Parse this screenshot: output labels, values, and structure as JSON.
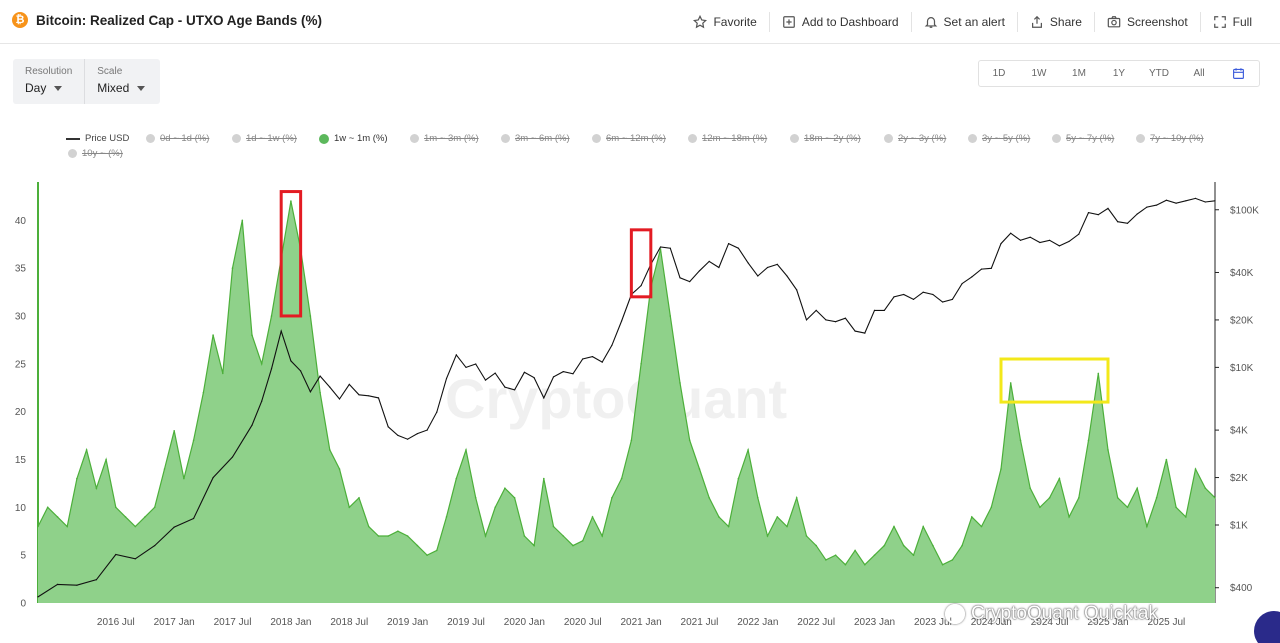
{
  "header": {
    "title": "Bitcoin: Realized Cap - UTXO Age Bands (%)",
    "coin_icon": "bitcoin-icon",
    "tools": [
      {
        "label": "Favorite",
        "icon": "star-icon"
      },
      {
        "label": "Add to Dashboard",
        "icon": "dashboard-add-icon"
      },
      {
        "label": "Set an alert",
        "icon": "bell-icon"
      },
      {
        "label": "Share",
        "icon": "share-icon"
      },
      {
        "label": "Screenshot",
        "icon": "camera-icon"
      },
      {
        "label": "Full",
        "icon": "fullscreen-icon"
      }
    ]
  },
  "controls": {
    "resolution_label": "Resolution",
    "resolution_value": "Day",
    "scale_label": "Scale",
    "scale_value": "Mixed",
    "ranges": [
      "1D",
      "1W",
      "1M",
      "1Y",
      "YTD",
      "All"
    ],
    "calendar_icon": "calendar-icon"
  },
  "legend": {
    "price_label": "Price USD",
    "bands": [
      {
        "label": "0d ~ 1d (%)",
        "active": false
      },
      {
        "label": "1d ~ 1w (%)",
        "active": false
      },
      {
        "label": "1w ~ 1m (%)",
        "active": true
      },
      {
        "label": "1m ~ 3m (%)",
        "active": false
      },
      {
        "label": "3m ~ 6m (%)",
        "active": false
      },
      {
        "label": "6m ~ 12m (%)",
        "active": false
      },
      {
        "label": "12m ~ 18m (%)",
        "active": false
      },
      {
        "label": "18m ~ 2y (%)",
        "active": false
      },
      {
        "label": "2y ~ 3y (%)",
        "active": false
      },
      {
        "label": "3y ~ 5y (%)",
        "active": false
      },
      {
        "label": "5y ~ 7y (%)",
        "active": false
      },
      {
        "label": "7y ~ 10y (%)",
        "active": false
      },
      {
        "label": "10y ~ (%)",
        "active": false
      }
    ]
  },
  "colors": {
    "band_fill": "#8fd18a",
    "band_line": "#4caf3a",
    "price_line": "#111111",
    "highlight_red": "#e31b23",
    "highlight_yellow": "#f3e81a",
    "active_dot": "#5cb85c"
  },
  "watermark": "CryptoQuant",
  "footer_watermark": "CryptoQuant Quicktak",
  "chart_data": {
    "type": "area",
    "x_start": "2015-11",
    "x_end": "2025-12",
    "xlabel_ticks": [
      "2016 Jul",
      "2017 Jan",
      "2017 Jul",
      "2018 Jan",
      "2018 Jul",
      "2019 Jan",
      "2019 Jul",
      "2020 Jan",
      "2020 Jul",
      "2021 Jan",
      "2021 Jul",
      "2022 Jan",
      "2022 Jul",
      "2023 Jan",
      "2023 Jul",
      "2024 Jan",
      "2024 Jul",
      "2025 Jan",
      "2025 Jul"
    ],
    "left_axis": {
      "ticks": [
        0,
        5,
        10,
        15,
        20,
        25,
        30,
        35,
        40
      ],
      "ylim": [
        0,
        44
      ]
    },
    "right_axis": {
      "scale": "log",
      "ticks": [
        "$400",
        "$1K",
        "$2K",
        "$4K",
        "$10K",
        "$20K",
        "$40K",
        "$100K"
      ],
      "tick_values": [
        400,
        1000,
        2000,
        4000,
        10000,
        20000,
        40000,
        100000
      ],
      "ylim": [
        320,
        150000
      ]
    },
    "series": [
      {
        "name": "1w ~ 1m (%)",
        "axis": "left",
        "points": [
          [
            "2015-11",
            8
          ],
          [
            "2015-12",
            10
          ],
          [
            "2016-01",
            9
          ],
          [
            "2016-02",
            8
          ],
          [
            "2016-03",
            13
          ],
          [
            "2016-04",
            16
          ],
          [
            "2016-05",
            12
          ],
          [
            "2016-06",
            15
          ],
          [
            "2016-07",
            10
          ],
          [
            "2016-08",
            9
          ],
          [
            "2016-09",
            8
          ],
          [
            "2016-10",
            9
          ],
          [
            "2016-11",
            10
          ],
          [
            "2016-12",
            14
          ],
          [
            "2017-01",
            18
          ],
          [
            "2017-02",
            13
          ],
          [
            "2017-03",
            17
          ],
          [
            "2017-04",
            22
          ],
          [
            "2017-05",
            28
          ],
          [
            "2017-06",
            24
          ],
          [
            "2017-07",
            35
          ],
          [
            "2017-08",
            40
          ],
          [
            "2017-09",
            28
          ],
          [
            "2017-10",
            25
          ],
          [
            "2017-11",
            30
          ],
          [
            "2017-12",
            36
          ],
          [
            "2018-01",
            42
          ],
          [
            "2018-02",
            37
          ],
          [
            "2018-03",
            30
          ],
          [
            "2018-04",
            22
          ],
          [
            "2018-05",
            16
          ],
          [
            "2018-06",
            14
          ],
          [
            "2018-07",
            10
          ],
          [
            "2018-08",
            11
          ],
          [
            "2018-09",
            8
          ],
          [
            "2018-10",
            7
          ],
          [
            "2018-11",
            7
          ],
          [
            "2018-12",
            7.5
          ],
          [
            "2019-01",
            7
          ],
          [
            "2019-02",
            6
          ],
          [
            "2019-03",
            5
          ],
          [
            "2019-04",
            5.5
          ],
          [
            "2019-05",
            9
          ],
          [
            "2019-06",
            13
          ],
          [
            "2019-07",
            16
          ],
          [
            "2019-08",
            11
          ],
          [
            "2019-09",
            7
          ],
          [
            "2019-10",
            10
          ],
          [
            "2019-11",
            12
          ],
          [
            "2019-12",
            11
          ],
          [
            "2020-01",
            7
          ],
          [
            "2020-02",
            6
          ],
          [
            "2020-03",
            13
          ],
          [
            "2020-04",
            8
          ],
          [
            "2020-05",
            7
          ],
          [
            "2020-06",
            6
          ],
          [
            "2020-07",
            6.5
          ],
          [
            "2020-08",
            9
          ],
          [
            "2020-09",
            7
          ],
          [
            "2020-10",
            11
          ],
          [
            "2020-11",
            13
          ],
          [
            "2020-12",
            17
          ],
          [
            "2021-01",
            25
          ],
          [
            "2021-02",
            33
          ],
          [
            "2021-03",
            37
          ],
          [
            "2021-04",
            30
          ],
          [
            "2021-05",
            23
          ],
          [
            "2021-06",
            17
          ],
          [
            "2021-07",
            14
          ],
          [
            "2021-08",
            11
          ],
          [
            "2021-09",
            9
          ],
          [
            "2021-10",
            8
          ],
          [
            "2021-11",
            13
          ],
          [
            "2021-12",
            16
          ],
          [
            "2022-01",
            11
          ],
          [
            "2022-02",
            7
          ],
          [
            "2022-03",
            9
          ],
          [
            "2022-04",
            8
          ],
          [
            "2022-05",
            11
          ],
          [
            "2022-06",
            7
          ],
          [
            "2022-07",
            6
          ],
          [
            "2022-08",
            4.5
          ],
          [
            "2022-09",
            5
          ],
          [
            "2022-10",
            4
          ],
          [
            "2022-11",
            5.5
          ],
          [
            "2022-12",
            4
          ],
          [
            "2023-01",
            5
          ],
          [
            "2023-02",
            6
          ],
          [
            "2023-03",
            8
          ],
          [
            "2023-04",
            6
          ],
          [
            "2023-05",
            5
          ],
          [
            "2023-06",
            8
          ],
          [
            "2023-07",
            6
          ],
          [
            "2023-08",
            4
          ],
          [
            "2023-09",
            4.5
          ],
          [
            "2023-10",
            6
          ],
          [
            "2023-11",
            9
          ],
          [
            "2023-12",
            8
          ],
          [
            "2024-01",
            10
          ],
          [
            "2024-02",
            14
          ],
          [
            "2024-03",
            23
          ],
          [
            "2024-04",
            17
          ],
          [
            "2024-05",
            12
          ],
          [
            "2024-06",
            10
          ],
          [
            "2024-07",
            11
          ],
          [
            "2024-08",
            13
          ],
          [
            "2024-09",
            9
          ],
          [
            "2024-10",
            11
          ],
          [
            "2024-11",
            17
          ],
          [
            "2024-12",
            24
          ],
          [
            "2025-01",
            16
          ],
          [
            "2025-02",
            11
          ],
          [
            "2025-03",
            10
          ],
          [
            "2025-04",
            12
          ],
          [
            "2025-05",
            8
          ],
          [
            "2025-06",
            11
          ],
          [
            "2025-07",
            15
          ],
          [
            "2025-08",
            10
          ],
          [
            "2025-09",
            9
          ],
          [
            "2025-10",
            14
          ],
          [
            "2025-11",
            12
          ],
          [
            "2025-12",
            11
          ]
        ]
      },
      {
        "name": "Price USD",
        "axis": "right",
        "points": [
          [
            "2015-11",
            350
          ],
          [
            "2016-01",
            420
          ],
          [
            "2016-03",
            415
          ],
          [
            "2016-05",
            450
          ],
          [
            "2016-07",
            650
          ],
          [
            "2016-09",
            610
          ],
          [
            "2016-11",
            740
          ],
          [
            "2017-01",
            970
          ],
          [
            "2017-03",
            1100
          ],
          [
            "2017-05",
            2000
          ],
          [
            "2017-07",
            2700
          ],
          [
            "2017-09",
            4300
          ],
          [
            "2017-10",
            6100
          ],
          [
            "2017-11",
            9800
          ],
          [
            "2017-12",
            17000
          ],
          [
            "2018-01",
            11000
          ],
          [
            "2018-02",
            9500
          ],
          [
            "2018-03",
            7000
          ],
          [
            "2018-04",
            8800
          ],
          [
            "2018-05",
            7500
          ],
          [
            "2018-06",
            6300
          ],
          [
            "2018-07",
            7800
          ],
          [
            "2018-08",
            6700
          ],
          [
            "2018-09",
            6600
          ],
          [
            "2018-10",
            6400
          ],
          [
            "2018-11",
            4200
          ],
          [
            "2018-12",
            3700
          ],
          [
            "2019-01",
            3500
          ],
          [
            "2019-02",
            3800
          ],
          [
            "2019-03",
            4000
          ],
          [
            "2019-04",
            5200
          ],
          [
            "2019-05",
            8500
          ],
          [
            "2019-06",
            12000
          ],
          [
            "2019-07",
            10000
          ],
          [
            "2019-08",
            10500
          ],
          [
            "2019-09",
            8300
          ],
          [
            "2019-10",
            9200
          ],
          [
            "2019-11",
            7500
          ],
          [
            "2019-12",
            7200
          ],
          [
            "2020-01",
            9300
          ],
          [
            "2020-02",
            8600
          ],
          [
            "2020-03",
            6400
          ],
          [
            "2020-04",
            8700
          ],
          [
            "2020-05",
            9400
          ],
          [
            "2020-06",
            9100
          ],
          [
            "2020-07",
            11300
          ],
          [
            "2020-08",
            11700
          ],
          [
            "2020-09",
            10800
          ],
          [
            "2020-10",
            13800
          ],
          [
            "2020-11",
            19700
          ],
          [
            "2020-12",
            29000
          ],
          [
            "2021-01",
            33000
          ],
          [
            "2021-02",
            45000
          ],
          [
            "2021-03",
            58000
          ],
          [
            "2021-04",
            57000
          ],
          [
            "2021-05",
            37000
          ],
          [
            "2021-06",
            35000
          ],
          [
            "2021-07",
            41000
          ],
          [
            "2021-08",
            47000
          ],
          [
            "2021-09",
            43000
          ],
          [
            "2021-10",
            61000
          ],
          [
            "2021-11",
            57000
          ],
          [
            "2021-12",
            46000
          ],
          [
            "2022-01",
            38000
          ],
          [
            "2022-02",
            43000
          ],
          [
            "2022-03",
            45000
          ],
          [
            "2022-04",
            38000
          ],
          [
            "2022-05",
            31000
          ],
          [
            "2022-06",
            20000
          ],
          [
            "2022-07",
            23000
          ],
          [
            "2022-08",
            20000
          ],
          [
            "2022-09",
            19500
          ],
          [
            "2022-10",
            20500
          ],
          [
            "2022-11",
            17000
          ],
          [
            "2022-12",
            16500
          ],
          [
            "2023-01",
            23000
          ],
          [
            "2023-02",
            23000
          ],
          [
            "2023-03",
            28000
          ],
          [
            "2023-04",
            29000
          ],
          [
            "2023-05",
            27000
          ],
          [
            "2023-06",
            30000
          ],
          [
            "2023-07",
            29000
          ],
          [
            "2023-08",
            26000
          ],
          [
            "2023-09",
            27000
          ],
          [
            "2023-10",
            34000
          ],
          [
            "2023-11",
            37500
          ],
          [
            "2023-12",
            42000
          ],
          [
            "2024-01",
            42500
          ],
          [
            "2024-02",
            61000
          ],
          [
            "2024-03",
            71000
          ],
          [
            "2024-04",
            64000
          ],
          [
            "2024-05",
            67000
          ],
          [
            "2024-06",
            62000
          ],
          [
            "2024-07",
            64000
          ],
          [
            "2024-08",
            59000
          ],
          [
            "2024-09",
            63000
          ],
          [
            "2024-10",
            70000
          ],
          [
            "2024-11",
            96000
          ],
          [
            "2024-12",
            93000
          ],
          [
            "2025-01",
            102000
          ],
          [
            "2025-02",
            84000
          ],
          [
            "2025-03",
            82000
          ],
          [
            "2025-04",
            94000
          ],
          [
            "2025-05",
            104000
          ],
          [
            "2025-06",
            107000
          ],
          [
            "2025-07",
            115000
          ],
          [
            "2025-08",
            110000
          ],
          [
            "2025-09",
            114000
          ],
          [
            "2025-10",
            118000
          ],
          [
            "2025-11",
            112000
          ],
          [
            "2025-12",
            114000
          ]
        ]
      }
    ],
    "highlights": [
      {
        "color": "red",
        "x_range": [
          "2017-12",
          "2018-02"
        ],
        "y_range": [
          30,
          43
        ]
      },
      {
        "color": "red",
        "x_range": [
          "2020-12",
          "2021-02"
        ],
        "y_range": [
          32,
          39
        ]
      },
      {
        "color": "yellow",
        "x_range": [
          "2024-02",
          "2025-01"
        ],
        "y_range": [
          21,
          25.5
        ]
      }
    ]
  }
}
